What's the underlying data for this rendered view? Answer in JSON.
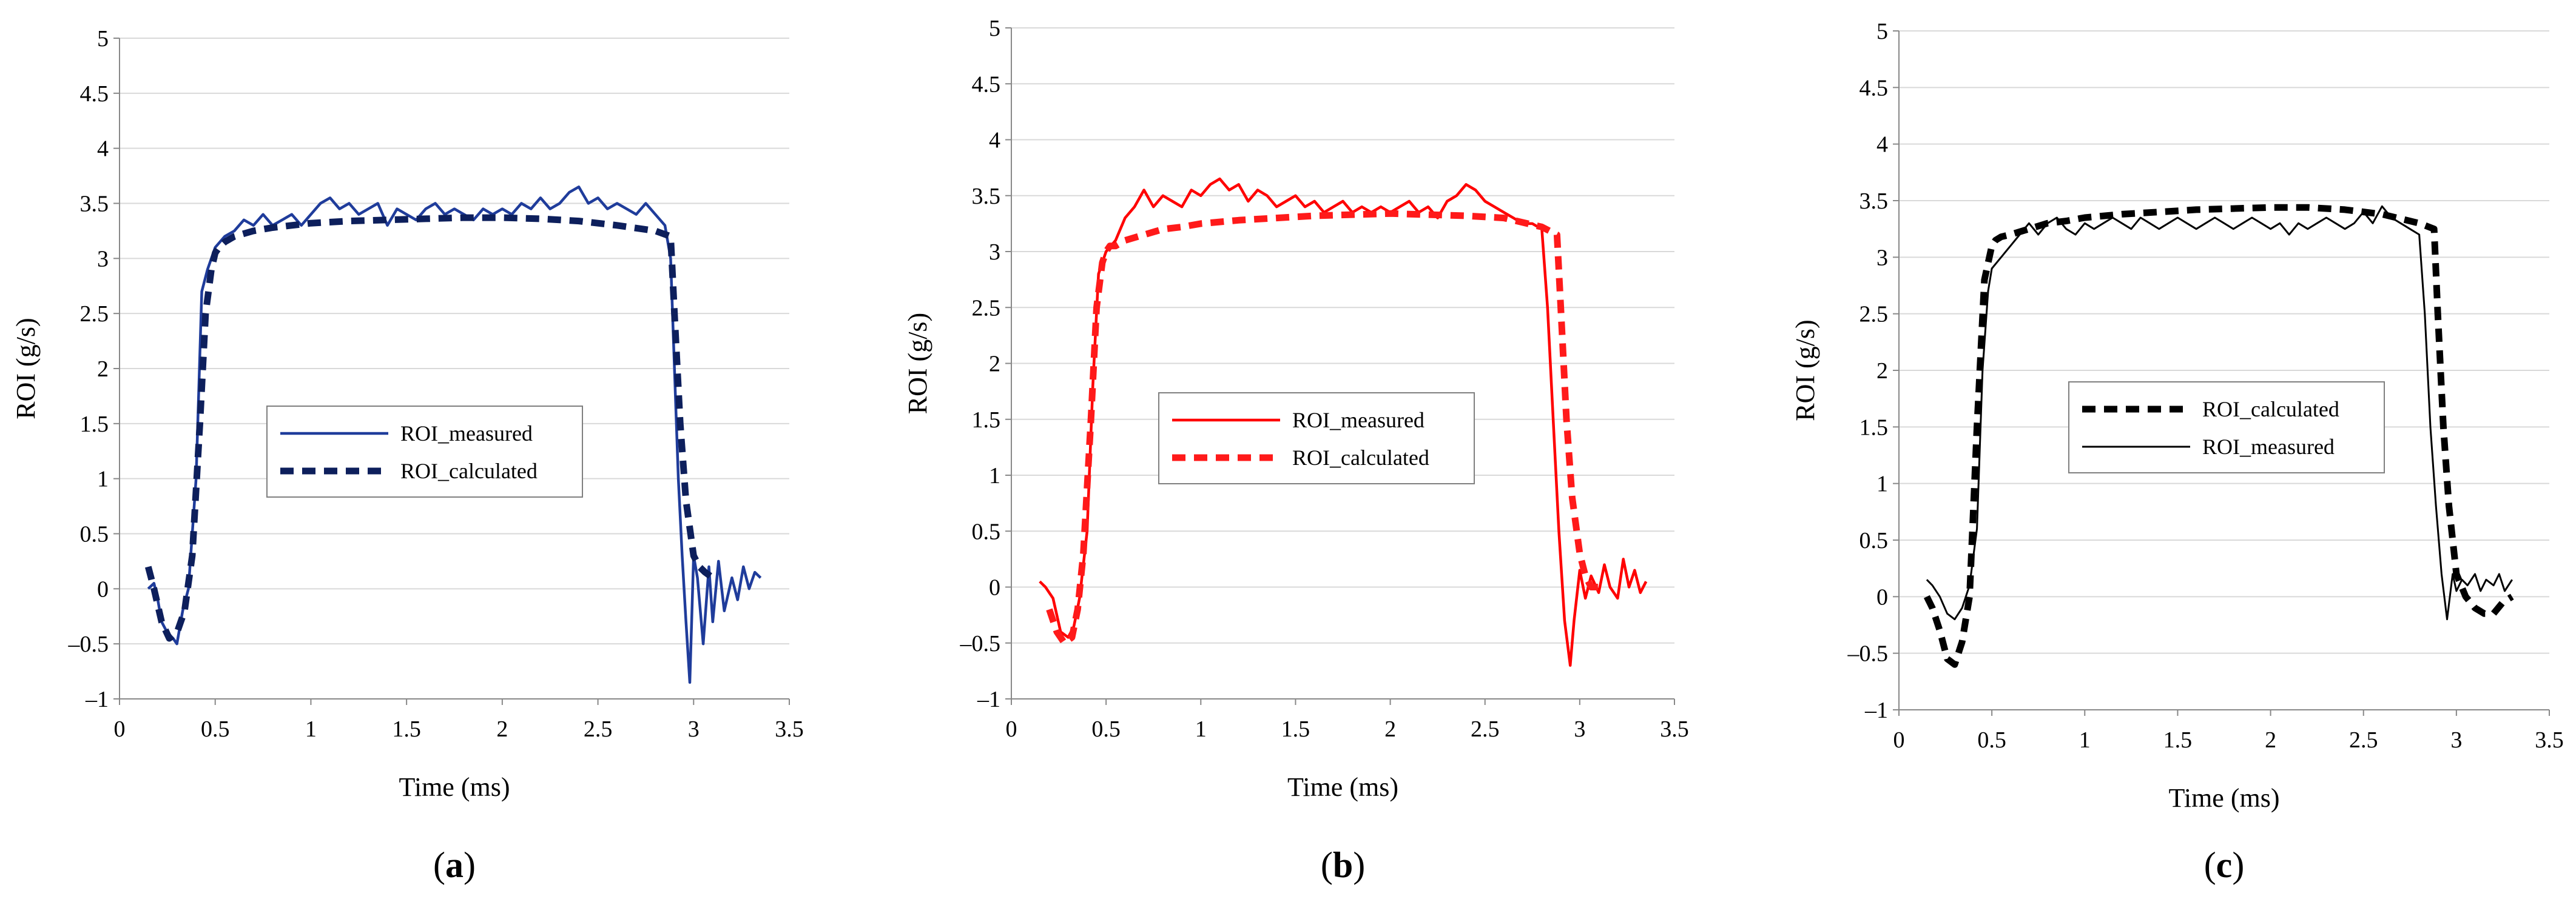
{
  "chart_data": [
    {
      "type": "line",
      "panel_label": "a",
      "xlabel": "Time (ms)",
      "ylabel": "ROI (g/s)",
      "xlim": [
        0,
        3.5
      ],
      "ylim": [
        -1,
        5
      ],
      "xticks": [
        "0",
        "0.5",
        "1",
        "1.5",
        "2",
        "2.5",
        "3",
        "3.5"
      ],
      "yticks": [
        "–1",
        "–0.5",
        "0",
        "0.5",
        "1",
        "1.5",
        "2",
        "2.5",
        "3",
        "3.5",
        "4",
        "4.5",
        "5"
      ],
      "grid": "horizontal",
      "legend_position": "center",
      "series": [
        {
          "name": "ROI_measured",
          "style": "solid",
          "color": "#1f3c9b",
          "x": [
            0.15,
            0.18,
            0.2,
            0.22,
            0.25,
            0.28,
            0.3,
            0.33,
            0.36,
            0.4,
            0.43,
            0.46,
            0.5,
            0.55,
            0.6,
            0.65,
            0.7,
            0.75,
            0.8,
            0.85,
            0.9,
            0.95,
            1.0,
            1.05,
            1.1,
            1.15,
            1.2,
            1.25,
            1.3,
            1.35,
            1.4,
            1.45,
            1.5,
            1.55,
            1.6,
            1.65,
            1.7,
            1.75,
            1.8,
            1.85,
            1.9,
            1.95,
            2.0,
            2.05,
            2.1,
            2.15,
            2.2,
            2.25,
            2.3,
            2.35,
            2.4,
            2.45,
            2.5,
            2.55,
            2.6,
            2.65,
            2.7,
            2.75,
            2.8,
            2.85,
            2.88,
            2.9,
            2.92,
            2.94,
            2.96,
            2.98,
            3.0,
            3.02,
            3.05,
            3.08,
            3.1,
            3.13,
            3.16,
            3.2,
            3.23,
            3.26,
            3.29,
            3.32,
            3.35
          ],
          "y": [
            0.0,
            0.05,
            -0.1,
            -0.3,
            -0.4,
            -0.45,
            -0.5,
            -0.2,
            0.0,
            1.0,
            2.7,
            2.9,
            3.1,
            3.2,
            3.25,
            3.35,
            3.3,
            3.4,
            3.3,
            3.35,
            3.4,
            3.3,
            3.4,
            3.5,
            3.55,
            3.45,
            3.5,
            3.4,
            3.45,
            3.5,
            3.3,
            3.45,
            3.4,
            3.35,
            3.45,
            3.5,
            3.4,
            3.45,
            3.4,
            3.35,
            3.45,
            3.4,
            3.45,
            3.4,
            3.5,
            3.45,
            3.55,
            3.45,
            3.5,
            3.6,
            3.65,
            3.5,
            3.55,
            3.45,
            3.5,
            3.45,
            3.4,
            3.5,
            3.4,
            3.3,
            3.0,
            2.0,
            1.0,
            0.3,
            -0.3,
            -0.85,
            0.3,
            0.1,
            -0.5,
            0.2,
            -0.3,
            0.25,
            -0.2,
            0.1,
            -0.1,
            0.2,
            0.0,
            0.15,
            0.1
          ]
        },
        {
          "name": "ROI_calculated",
          "style": "dashed",
          "color": "#0d1f5c",
          "x": [
            0.15,
            0.18,
            0.22,
            0.26,
            0.3,
            0.34,
            0.38,
            0.42,
            0.45,
            0.48,
            0.5,
            0.52,
            0.55,
            0.6,
            0.7,
            0.8,
            0.9,
            1.0,
            1.2,
            1.4,
            1.6,
            1.8,
            2.0,
            2.2,
            2.4,
            2.6,
            2.8,
            2.88,
            2.9,
            2.93,
            2.96,
            3.0,
            3.03,
            3.06,
            3.1
          ],
          "y": [
            0.2,
            0.0,
            -0.3,
            -0.45,
            -0.4,
            -0.2,
            0.3,
            1.5,
            2.5,
            2.9,
            3.05,
            3.1,
            3.15,
            3.2,
            3.25,
            3.28,
            3.3,
            3.32,
            3.34,
            3.35,
            3.36,
            3.37,
            3.37,
            3.36,
            3.34,
            3.3,
            3.25,
            3.2,
            2.5,
            1.5,
            0.8,
            0.3,
            0.2,
            0.15,
            0.1
          ]
        }
      ]
    },
    {
      "type": "line",
      "panel_label": "b",
      "xlabel": "Time (ms)",
      "ylabel": "ROI (g/s)",
      "xlim": [
        0,
        3.5
      ],
      "ylim": [
        -1,
        5
      ],
      "xticks": [
        "0",
        "0.5",
        "1",
        "1.5",
        "2",
        "2.5",
        "3",
        "3.5"
      ],
      "yticks": [
        "–1",
        "–0.5",
        "0",
        "0.5",
        "1",
        "1.5",
        "2",
        "2.5",
        "3",
        "3.5",
        "4",
        "4.5",
        "5"
      ],
      "grid": "horizontal",
      "legend_position": "center",
      "series": [
        {
          "name": "ROI_measured",
          "style": "solid",
          "color": "#ff0000",
          "x": [
            0.15,
            0.18,
            0.22,
            0.26,
            0.3,
            0.33,
            0.36,
            0.4,
            0.43,
            0.46,
            0.5,
            0.55,
            0.6,
            0.65,
            0.7,
            0.75,
            0.8,
            0.85,
            0.9,
            0.95,
            1.0,
            1.05,
            1.1,
            1.15,
            1.2,
            1.25,
            1.3,
            1.35,
            1.4,
            1.45,
            1.5,
            1.55,
            1.6,
            1.65,
            1.7,
            1.75,
            1.8,
            1.85,
            1.9,
            1.95,
            2.0,
            2.05,
            2.1,
            2.15,
            2.2,
            2.25,
            2.3,
            2.35,
            2.4,
            2.45,
            2.5,
            2.55,
            2.6,
            2.65,
            2.7,
            2.75,
            2.8,
            2.83,
            2.86,
            2.89,
            2.92,
            2.95,
            2.97,
            3.0,
            3.03,
            3.06,
            3.1,
            3.13,
            3.16,
            3.2,
            3.23,
            3.26,
            3.29,
            3.32,
            3.35
          ],
          "y": [
            0.05,
            0.0,
            -0.1,
            -0.4,
            -0.45,
            -0.35,
            -0.1,
            0.5,
            1.8,
            2.8,
            3.0,
            3.1,
            3.3,
            3.4,
            3.55,
            3.4,
            3.5,
            3.45,
            3.4,
            3.55,
            3.5,
            3.6,
            3.65,
            3.55,
            3.6,
            3.45,
            3.55,
            3.5,
            3.4,
            3.45,
            3.5,
            3.4,
            3.45,
            3.35,
            3.4,
            3.45,
            3.35,
            3.4,
            3.35,
            3.4,
            3.35,
            3.4,
            3.45,
            3.35,
            3.4,
            3.3,
            3.45,
            3.5,
            3.6,
            3.55,
            3.45,
            3.4,
            3.35,
            3.3,
            3.25,
            3.25,
            3.2,
            2.5,
            1.5,
            0.5,
            -0.3,
            -0.7,
            -0.3,
            0.15,
            -0.1,
            0.1,
            -0.05,
            0.2,
            0.0,
            -0.1,
            0.25,
            0.0,
            0.15,
            -0.05,
            0.05
          ]
        },
        {
          "name": "ROI_calculated",
          "style": "dashed",
          "color": "#ff1a1a",
          "x": [
            0.2,
            0.24,
            0.28,
            0.32,
            0.35,
            0.38,
            0.42,
            0.45,
            0.48,
            0.5,
            0.52,
            0.55,
            0.6,
            0.7,
            0.8,
            0.9,
            1.0,
            1.2,
            1.4,
            1.6,
            1.8,
            2.0,
            2.2,
            2.4,
            2.6,
            2.8,
            2.88,
            2.9,
            2.93,
            2.96,
            3.0,
            3.03,
            3.06,
            3.1
          ],
          "y": [
            -0.2,
            -0.4,
            -0.5,
            -0.45,
            -0.2,
            0.3,
            1.5,
            2.5,
            2.9,
            3.0,
            3.05,
            3.05,
            3.1,
            3.15,
            3.2,
            3.22,
            3.25,
            3.28,
            3.3,
            3.32,
            3.33,
            3.34,
            3.33,
            3.32,
            3.3,
            3.22,
            3.15,
            2.5,
            1.5,
            0.8,
            0.3,
            0.1,
            0.0,
            0.0
          ]
        }
      ]
    },
    {
      "type": "line",
      "panel_label": "c",
      "xlabel": "Time (ms)",
      "ylabel": "ROI (g/s)",
      "xlim": [
        0,
        3.5
      ],
      "ylim": [
        -1,
        5
      ],
      "xticks": [
        "0",
        "0.5",
        "1",
        "1.5",
        "2",
        "2.5",
        "3",
        "3.5"
      ],
      "yticks": [
        "–1",
        "–0.5",
        "0",
        "0.5",
        "1",
        "1.5",
        "2",
        "2.5",
        "3",
        "3.5",
        "4",
        "4.5",
        "5"
      ],
      "grid": "horizontal",
      "legend_position": "center",
      "series": [
        {
          "name": "ROI_calculated",
          "style": "dashed",
          "color": "#000000",
          "x": [
            0.15,
            0.18,
            0.22,
            0.26,
            0.3,
            0.34,
            0.38,
            0.42,
            0.46,
            0.5,
            0.52,
            0.55,
            0.6,
            0.7,
            0.8,
            0.9,
            1.0,
            1.2,
            1.4,
            1.6,
            1.8,
            2.0,
            2.2,
            2.4,
            2.6,
            2.8,
            2.88,
            2.9,
            2.93,
            2.96,
            3.0,
            3.05,
            3.1,
            3.15,
            3.2,
            3.25,
            3.3
          ],
          "y": [
            0.0,
            -0.1,
            -0.3,
            -0.55,
            -0.6,
            -0.4,
            0.0,
            1.5,
            2.8,
            3.1,
            3.15,
            3.18,
            3.2,
            3.25,
            3.3,
            3.32,
            3.35,
            3.38,
            3.4,
            3.42,
            3.43,
            3.44,
            3.44,
            3.42,
            3.38,
            3.3,
            3.25,
            2.5,
            1.5,
            0.8,
            0.2,
            0.0,
            -0.1,
            -0.15,
            -0.15,
            -0.05,
            0.0
          ]
        },
        {
          "name": "ROI_measured",
          "style": "solid",
          "color": "#000000",
          "x": [
            0.15,
            0.18,
            0.22,
            0.26,
            0.3,
            0.34,
            0.38,
            0.42,
            0.45,
            0.48,
            0.5,
            0.55,
            0.6,
            0.65,
            0.7,
            0.75,
            0.8,
            0.85,
            0.9,
            0.95,
            1.0,
            1.05,
            1.1,
            1.15,
            1.2,
            1.25,
            1.3,
            1.35,
            1.4,
            1.45,
            1.5,
            1.55,
            1.6,
            1.65,
            1.7,
            1.75,
            1.8,
            1.85,
            1.9,
            1.95,
            2.0,
            2.05,
            2.1,
            2.15,
            2.2,
            2.25,
            2.3,
            2.35,
            2.4,
            2.45,
            2.5,
            2.55,
            2.6,
            2.65,
            2.7,
            2.75,
            2.8,
            2.83,
            2.86,
            2.89,
            2.92,
            2.95,
            2.98,
            3.0,
            3.03,
            3.06,
            3.1,
            3.13,
            3.16,
            3.2,
            3.23,
            3.26,
            3.3
          ],
          "y": [
            0.15,
            0.1,
            0.0,
            -0.15,
            -0.2,
            -0.1,
            0.1,
            0.6,
            2.0,
            2.7,
            2.9,
            3.0,
            3.1,
            3.2,
            3.3,
            3.2,
            3.3,
            3.35,
            3.25,
            3.2,
            3.3,
            3.25,
            3.3,
            3.35,
            3.3,
            3.25,
            3.35,
            3.3,
            3.25,
            3.3,
            3.35,
            3.3,
            3.25,
            3.3,
            3.35,
            3.3,
            3.25,
            3.3,
            3.35,
            3.3,
            3.25,
            3.3,
            3.2,
            3.3,
            3.25,
            3.3,
            3.35,
            3.3,
            3.25,
            3.3,
            3.4,
            3.3,
            3.45,
            3.35,
            3.3,
            3.25,
            3.2,
            2.5,
            1.5,
            0.8,
            0.2,
            -0.2,
            0.2,
            0.05,
            0.15,
            0.1,
            0.2,
            0.05,
            0.15,
            0.1,
            0.2,
            0.05,
            0.15
          ]
        }
      ]
    }
  ]
}
